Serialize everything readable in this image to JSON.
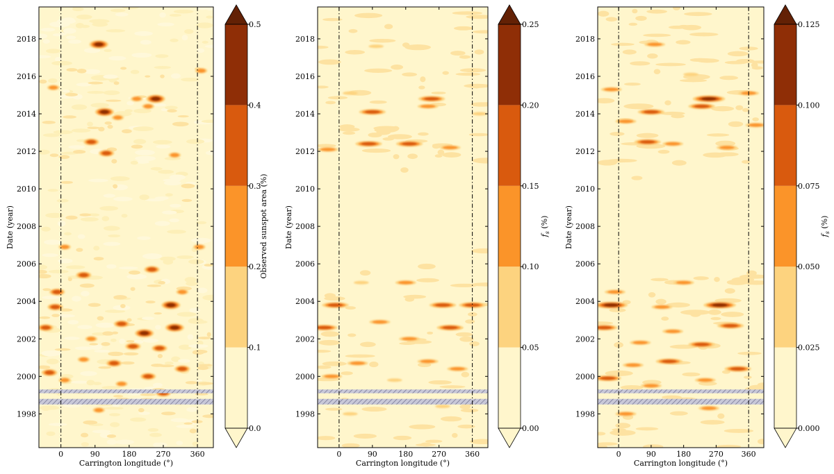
{
  "chart_data": [
    {
      "type": "heatmap",
      "xlabel": "Carrington longitude (°)",
      "ylabel": "Date (year)",
      "xlim": [
        -58,
        402
      ],
      "ylim": [
        1996.2,
        2019.7
      ],
      "x_ticks": [
        0,
        90,
        180,
        270,
        360
      ],
      "y_ticks": [
        1998,
        2000,
        2002,
        2004,
        2006,
        2008,
        2010,
        2012,
        2014,
        2016,
        2018
      ],
      "reference_lines_x": [
        0,
        360
      ],
      "data_gaps_years": [
        [
          1999.1,
          1999.3
        ],
        [
          1998.5,
          1998.8
        ]
      ],
      "colorbar": {
        "label": "Observed sunspot area (%)",
        "levels": [
          0.0,
          0.1,
          0.2,
          0.3,
          0.4,
          0.5
        ],
        "tick_labels": [
          "0.0",
          "0.1",
          "0.2",
          "0.3",
          "0.4",
          "0.5"
        ],
        "extend": "both",
        "colors": [
          "#fff6cc",
          "#fdd37f",
          "#fb9429",
          "#d95a0e",
          "#8f2e06",
          "#632105"
        ]
      },
      "features": [
        {
          "x": 100,
          "y": 2017.7,
          "level": 4
        },
        {
          "x": 115,
          "y": 2014.1,
          "level": 4
        },
        {
          "x": 250,
          "y": 2014.8,
          "level": 4
        },
        {
          "x": 230,
          "y": 2014.4,
          "level": 2
        },
        {
          "x": 200,
          "y": 2014.8,
          "level": 2
        },
        {
          "x": 80,
          "y": 2012.5,
          "level": 3
        },
        {
          "x": 120,
          "y": 2011.9,
          "level": 3
        },
        {
          "x": 300,
          "y": 2011.8,
          "level": 2
        },
        {
          "x": -20,
          "y": 2015.4,
          "level": 2
        },
        {
          "x": 370,
          "y": 2016.3,
          "level": 2
        },
        {
          "x": 150,
          "y": 2013.8,
          "level": 2
        },
        {
          "x": 10,
          "y": 2006.9,
          "level": 2
        },
        {
          "x": 365,
          "y": 2006.9,
          "level": 2
        },
        {
          "x": 60,
          "y": 2005.4,
          "level": 3
        },
        {
          "x": 240,
          "y": 2005.7,
          "level": 3
        },
        {
          "x": -10,
          "y": 2004.5,
          "level": 3
        },
        {
          "x": 320,
          "y": 2004.5,
          "level": 2
        },
        {
          "x": -15,
          "y": 2003.7,
          "level": 3
        },
        {
          "x": 290,
          "y": 2003.8,
          "level": 4
        },
        {
          "x": 160,
          "y": 2002.8,
          "level": 3
        },
        {
          "x": 220,
          "y": 2002.3,
          "level": 4
        },
        {
          "x": 300,
          "y": 2002.6,
          "level": 4
        },
        {
          "x": -40,
          "y": 2002.6,
          "level": 3
        },
        {
          "x": 80,
          "y": 2002.0,
          "level": 2
        },
        {
          "x": 260,
          "y": 2001.5,
          "level": 3
        },
        {
          "x": 190,
          "y": 2001.6,
          "level": 3
        },
        {
          "x": 140,
          "y": 2000.7,
          "level": 3
        },
        {
          "x": 60,
          "y": 2000.9,
          "level": 2
        },
        {
          "x": 320,
          "y": 2000.4,
          "level": 3
        },
        {
          "x": 230,
          "y": 2000.0,
          "level": 3
        },
        {
          "x": -30,
          "y": 2000.2,
          "level": 3
        },
        {
          "x": 10,
          "y": 1999.8,
          "level": 2
        },
        {
          "x": 270,
          "y": 1999.1,
          "level": 3
        },
        {
          "x": 160,
          "y": 1999.6,
          "level": 2
        },
        {
          "x": 100,
          "y": 1998.2,
          "level": 2
        }
      ]
    },
    {
      "type": "heatmap",
      "xlabel": "Carrington longitude (°)",
      "ylabel": "Date (year)",
      "xlim": [
        -58,
        402
      ],
      "ylim": [
        1996.2,
        2019.7
      ],
      "x_ticks": [
        0,
        90,
        180,
        270,
        360
      ],
      "y_ticks": [
        1998,
        2000,
        2002,
        2004,
        2006,
        2008,
        2010,
        2012,
        2014,
        2016,
        2018
      ],
      "reference_lines_x": [
        0,
        360
      ],
      "data_gaps_years": [
        [
          1999.1,
          1999.3
        ],
        [
          1998.5,
          1998.8
        ]
      ],
      "colorbar": {
        "label": "f_s (%)",
        "levels": [
          0.0,
          0.05,
          0.1,
          0.15,
          0.2,
          0.25
        ],
        "tick_labels": [
          "0.00",
          "0.05",
          "0.10",
          "0.15",
          "0.20",
          "0.25"
        ],
        "extend": "both",
        "colors": [
          "#fff6cc",
          "#fdd37f",
          "#fb9429",
          "#d95a0e",
          "#8f2e06",
          "#632105"
        ]
      },
      "features": [
        {
          "x": 100,
          "y": 2017.6,
          "level": 1
        },
        {
          "x": 90,
          "y": 2014.1,
          "level": 3
        },
        {
          "x": 250,
          "y": 2014.8,
          "level": 3
        },
        {
          "x": 240,
          "y": 2014.4,
          "level": 2
        },
        {
          "x": 80,
          "y": 2012.4,
          "level": 3
        },
        {
          "x": 190,
          "y": 2012.4,
          "level": 3
        },
        {
          "x": 300,
          "y": 2012.2,
          "level": 2
        },
        {
          "x": -30,
          "y": 2012.1,
          "level": 2
        },
        {
          "x": 380,
          "y": 2014.0,
          "level": 1
        },
        {
          "x": 30,
          "y": 2015.1,
          "level": 1
        },
        {
          "x": 180,
          "y": 2005.0,
          "level": 2
        },
        {
          "x": 60,
          "y": 2005.0,
          "level": 1
        },
        {
          "x": -10,
          "y": 2003.8,
          "level": 3
        },
        {
          "x": 280,
          "y": 2003.8,
          "level": 3
        },
        {
          "x": 360,
          "y": 2003.8,
          "level": 3
        },
        {
          "x": -40,
          "y": 2002.6,
          "level": 3
        },
        {
          "x": 300,
          "y": 2002.6,
          "level": 3
        },
        {
          "x": 110,
          "y": 2002.9,
          "level": 2
        },
        {
          "x": 190,
          "y": 2002.0,
          "level": 2
        },
        {
          "x": 50,
          "y": 2000.7,
          "level": 2
        },
        {
          "x": 240,
          "y": 2000.8,
          "level": 2
        },
        {
          "x": 320,
          "y": 2000.4,
          "level": 2
        },
        {
          "x": -20,
          "y": 2000.0,
          "level": 2
        },
        {
          "x": 150,
          "y": 1999.8,
          "level": 1
        },
        {
          "x": 30,
          "y": 1998.0,
          "level": 1
        },
        {
          "x": 280,
          "y": 1998.4,
          "level": 1
        }
      ]
    },
    {
      "type": "heatmap",
      "xlabel": "Carrington longitude (°)",
      "ylabel": "Date (year)",
      "xlim": [
        -58,
        402
      ],
      "ylim": [
        1996.2,
        2019.7
      ],
      "x_ticks": [
        0,
        90,
        180,
        270,
        360
      ],
      "y_ticks": [
        1998,
        2000,
        2002,
        2004,
        2006,
        2008,
        2010,
        2012,
        2014,
        2016,
        2018
      ],
      "reference_lines_x": [
        0,
        360
      ],
      "data_gaps_years": [
        [
          1999.1,
          1999.3
        ],
        [
          1998.5,
          1998.8
        ]
      ],
      "colorbar": {
        "label": "f_s (%)",
        "levels": [
          0.0,
          0.025,
          0.05,
          0.075,
          0.1,
          0.125
        ],
        "tick_labels": [
          "0.000",
          "0.025",
          "0.050",
          "0.075",
          "0.100",
          "0.125"
        ],
        "extend": "both",
        "colors": [
          "#fff6cc",
          "#fdd37f",
          "#fb9429",
          "#d95a0e",
          "#8f2e06",
          "#632105"
        ]
      },
      "features": [
        {
          "x": 100,
          "y": 2017.7,
          "level": 2
        },
        {
          "x": 250,
          "y": 2014.8,
          "level": 4
        },
        {
          "x": 90,
          "y": 2014.1,
          "level": 3
        },
        {
          "x": 230,
          "y": 2014.4,
          "level": 3
        },
        {
          "x": 80,
          "y": 2012.5,
          "level": 3
        },
        {
          "x": 150,
          "y": 2012.4,
          "level": 2
        },
        {
          "x": 300,
          "y": 2012.2,
          "level": 2
        },
        {
          "x": -20,
          "y": 2015.3,
          "level": 2
        },
        {
          "x": 360,
          "y": 2015.1,
          "level": 2
        },
        {
          "x": 20,
          "y": 2013.6,
          "level": 2
        },
        {
          "x": 200,
          "y": 2016.1,
          "level": 1
        },
        {
          "x": 380,
          "y": 2013.4,
          "level": 2
        },
        {
          "x": 180,
          "y": 2005.0,
          "level": 2
        },
        {
          "x": -10,
          "y": 2004.5,
          "level": 2
        },
        {
          "x": -20,
          "y": 2003.8,
          "level": 4
        },
        {
          "x": 280,
          "y": 2003.8,
          "level": 4
        },
        {
          "x": 120,
          "y": 2003.7,
          "level": 2
        },
        {
          "x": -40,
          "y": 2002.6,
          "level": 3
        },
        {
          "x": 310,
          "y": 2002.7,
          "level": 3
        },
        {
          "x": 150,
          "y": 2002.4,
          "level": 2
        },
        {
          "x": 230,
          "y": 2001.7,
          "level": 3
        },
        {
          "x": 60,
          "y": 2001.8,
          "level": 2
        },
        {
          "x": 140,
          "y": 2000.8,
          "level": 3
        },
        {
          "x": 330,
          "y": 2000.4,
          "level": 3
        },
        {
          "x": 40,
          "y": 2000.6,
          "level": 2
        },
        {
          "x": -30,
          "y": 1999.9,
          "level": 3
        },
        {
          "x": 240,
          "y": 1999.8,
          "level": 2
        },
        {
          "x": 90,
          "y": 1999.5,
          "level": 2
        },
        {
          "x": 20,
          "y": 1998.0,
          "level": 2
        },
        {
          "x": 250,
          "y": 1998.3,
          "level": 2
        }
      ]
    }
  ]
}
